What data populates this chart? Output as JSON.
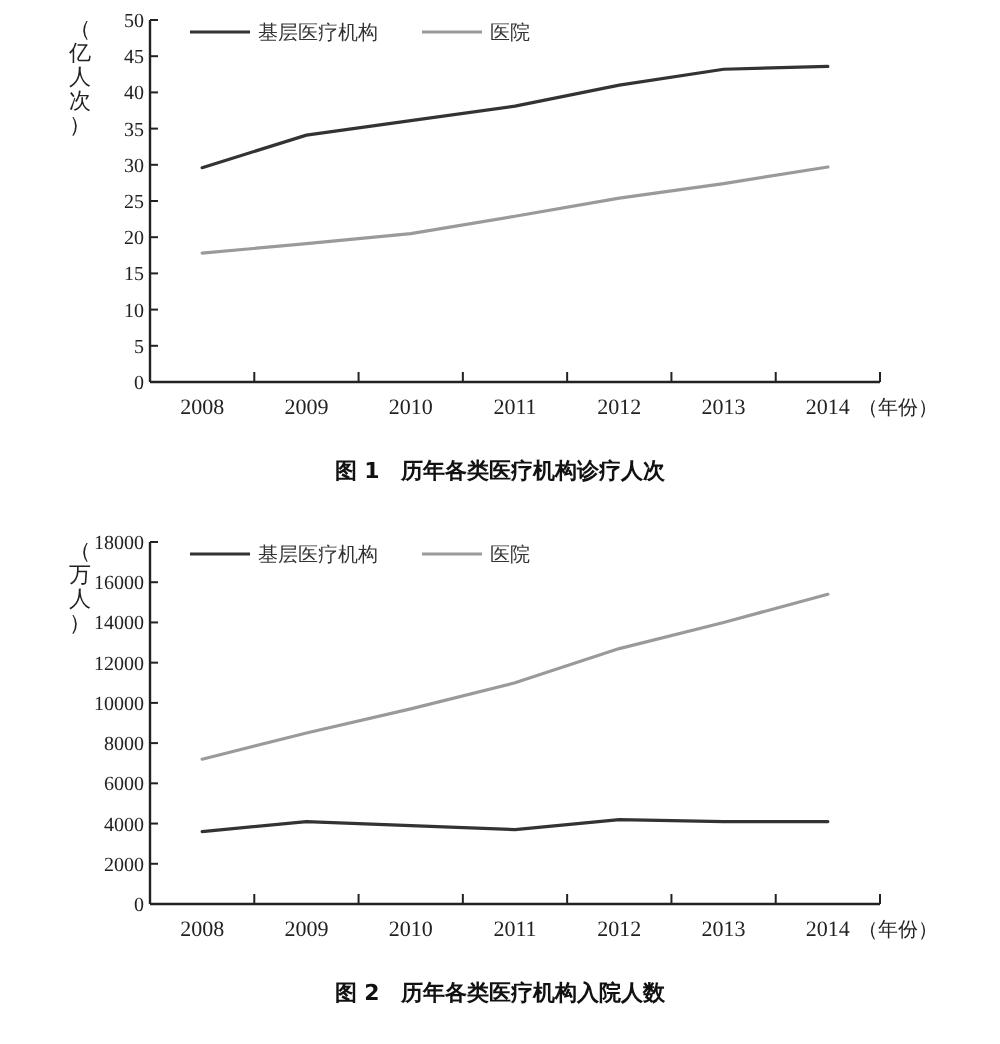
{
  "chart_data": [
    {
      "type": "line",
      "title": "图 1　历年各类医疗机构诊疗人次",
      "xlabel": "（年份）",
      "ylabel": "（亿人次）",
      "categories": [
        "2008",
        "2009",
        "2010",
        "2011",
        "2012",
        "2013",
        "2014"
      ],
      "ylim": [
        0,
        50
      ],
      "yticks": [
        0,
        5,
        10,
        15,
        20,
        25,
        30,
        35,
        40,
        45,
        50
      ],
      "legend": "top left",
      "series": [
        {
          "name": "基层医疗机构",
          "color": "#333333",
          "values": [
            29.6,
            34.1,
            36.1,
            38.1,
            41.0,
            43.2,
            43.6
          ]
        },
        {
          "name": "医院",
          "color": "#9a9a9a",
          "values": [
            17.8,
            19.1,
            20.5,
            22.9,
            25.4,
            27.4,
            29.7
          ]
        }
      ]
    },
    {
      "type": "line",
      "title": "图 2　历年各类医疗机构入院人数",
      "xlabel": "（年份）",
      "ylabel": "（万人）",
      "categories": [
        "2008",
        "2009",
        "2010",
        "2011",
        "2012",
        "2013",
        "2014"
      ],
      "ylim": [
        0,
        18000
      ],
      "yticks": [
        0,
        2000,
        4000,
        6000,
        8000,
        10000,
        12000,
        14000,
        16000,
        18000
      ],
      "legend": "top left",
      "series": [
        {
          "name": "基层医疗机构",
          "color": "#333333",
          "values": [
            3600,
            4100,
            3900,
            3700,
            4200,
            4100,
            4100
          ]
        },
        {
          "name": "医院",
          "color": "#9a9a9a",
          "values": [
            7200,
            8500,
            9700,
            11000,
            12700,
            14000,
            15400
          ]
        }
      ]
    }
  ]
}
